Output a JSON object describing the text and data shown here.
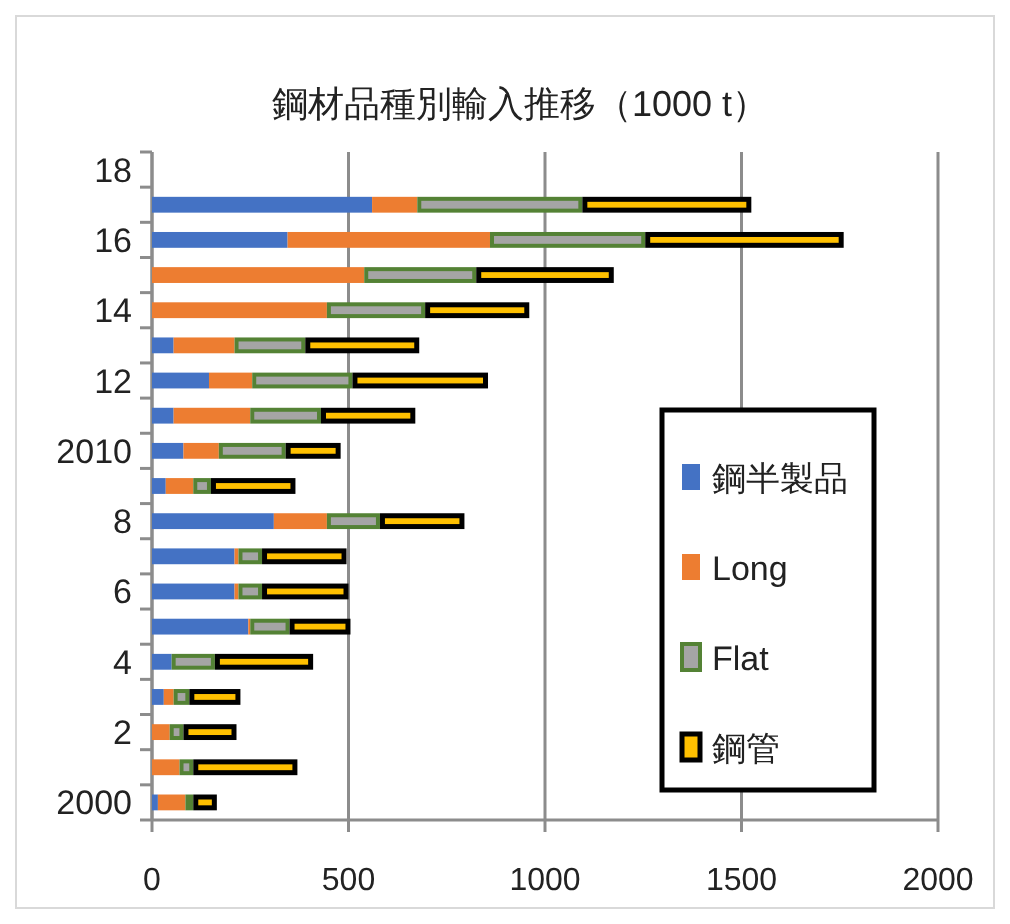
{
  "chart_data": {
    "type": "bar",
    "title": "鋼材品種別輸入推移（1000 t）",
    "orientation": "horizontal",
    "stacked": true,
    "categories": [
      "18",
      null,
      "16",
      null,
      "14",
      null,
      "12",
      null,
      "2010",
      null,
      "8",
      null,
      "6",
      null,
      "4",
      null,
      "2",
      null,
      "2000"
    ],
    "series": [
      {
        "name": "鋼半製品",
        "color": "#4472c4",
        "values": [
          null,
          560,
          345,
          0,
          0,
          55,
          145,
          55,
          80,
          35,
          310,
          210,
          210,
          245,
          50,
          30,
          0,
          0,
          15
        ]
      },
      {
        "name": "Long",
        "color": "#ed7d31",
        "values": [
          null,
          115,
          515,
          540,
          445,
          155,
          110,
          195,
          90,
          70,
          135,
          10,
          10,
          5,
          0,
          25,
          45,
          70,
          70
        ]
      },
      {
        "name": "Flat",
        "color": "#a5a5a5",
        "values": [
          null,
          420,
          395,
          285,
          250,
          180,
          255,
          180,
          170,
          45,
          135,
          60,
          60,
          100,
          110,
          40,
          35,
          35,
          20
        ]
      },
      {
        "name": "鋼管",
        "color": "#ffc000",
        "values": [
          null,
          430,
          505,
          350,
          265,
          290,
          345,
          240,
          140,
          215,
          215,
          215,
          220,
          155,
          250,
          130,
          135,
          265,
          60
        ]
      }
    ],
    "xlim": [
      0,
      2000
    ],
    "xticks": [
      0,
      500,
      1000,
      1500,
      2000
    ],
    "grid": "x",
    "legend": "right"
  }
}
